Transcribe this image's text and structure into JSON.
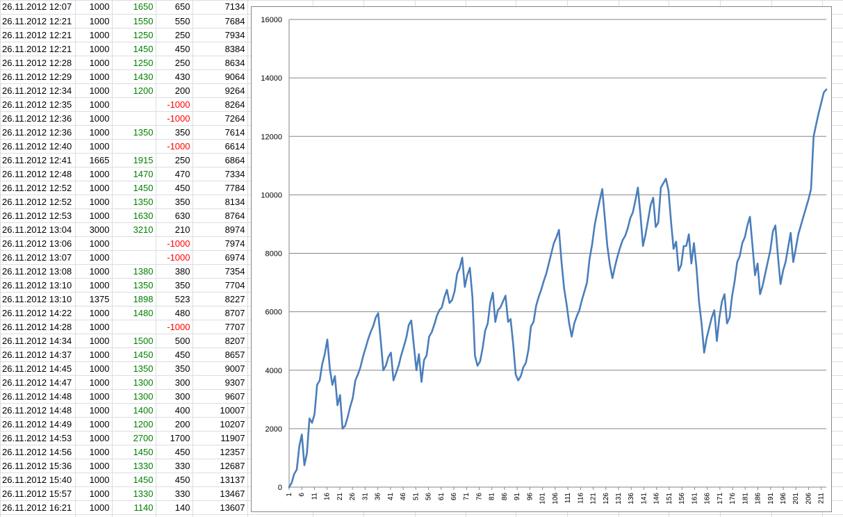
{
  "table": {
    "rows": [
      {
        "date": "26.11.2012 12:07",
        "stake": "1000",
        "payout": "1650",
        "profit": "650",
        "balance": "7134"
      },
      {
        "date": "26.11.2012 12:21",
        "stake": "1000",
        "payout": "1550",
        "profit": "550",
        "balance": "7684"
      },
      {
        "date": "26.11.2012 12:21",
        "stake": "1000",
        "payout": "1250",
        "profit": "250",
        "balance": "7934"
      },
      {
        "date": "26.11.2012 12:21",
        "stake": "1000",
        "payout": "1450",
        "profit": "450",
        "balance": "8384"
      },
      {
        "date": "26.11.2012 12:28",
        "stake": "1000",
        "payout": "1250",
        "profit": "250",
        "balance": "8634"
      },
      {
        "date": "26.11.2012 12:29",
        "stake": "1000",
        "payout": "1430",
        "profit": "430",
        "balance": "9064"
      },
      {
        "date": "26.11.2012 12:34",
        "stake": "1000",
        "payout": "1200",
        "profit": "200",
        "balance": "9264"
      },
      {
        "date": "26.11.2012 12:35",
        "stake": "1000",
        "payout": "",
        "profit": "-1000",
        "balance": "8264"
      },
      {
        "date": "26.11.2012 12:36",
        "stake": "1000",
        "payout": "",
        "profit": "-1000",
        "balance": "7264"
      },
      {
        "date": "26.11.2012 12:36",
        "stake": "1000",
        "payout": "1350",
        "profit": "350",
        "balance": "7614"
      },
      {
        "date": "26.11.2012 12:40",
        "stake": "1000",
        "payout": "",
        "profit": "-1000",
        "balance": "6614"
      },
      {
        "date": "26.11.2012 12:41",
        "stake": "1665",
        "payout": "1915",
        "profit": "250",
        "balance": "6864"
      },
      {
        "date": "26.11.2012 12:48",
        "stake": "1000",
        "payout": "1470",
        "profit": "470",
        "balance": "7334"
      },
      {
        "date": "26.11.2012 12:52",
        "stake": "1000",
        "payout": "1450",
        "profit": "450",
        "balance": "7784"
      },
      {
        "date": "26.11.2012 12:52",
        "stake": "1000",
        "payout": "1350",
        "profit": "350",
        "balance": "8134"
      },
      {
        "date": "26.11.2012 12:53",
        "stake": "1000",
        "payout": "1630",
        "profit": "630",
        "balance": "8764"
      },
      {
        "date": "26.11.2012 13:04",
        "stake": "3000",
        "payout": "3210",
        "profit": "210",
        "balance": "8974"
      },
      {
        "date": "26.11.2012 13:06",
        "stake": "1000",
        "payout": "",
        "profit": "-1000",
        "balance": "7974"
      },
      {
        "date": "26.11.2012 13:07",
        "stake": "1000",
        "payout": "",
        "profit": "-1000",
        "balance": "6974"
      },
      {
        "date": "26.11.2012 13:08",
        "stake": "1000",
        "payout": "1380",
        "profit": "380",
        "balance": "7354"
      },
      {
        "date": "26.11.2012 13:10",
        "stake": "1000",
        "payout": "1350",
        "profit": "350",
        "balance": "7704"
      },
      {
        "date": "26.11.2012 13:10",
        "stake": "1375",
        "payout": "1898",
        "profit": "523",
        "balance": "8227"
      },
      {
        "date": "26.11.2012 14:22",
        "stake": "1000",
        "payout": "1480",
        "profit": "480",
        "balance": "8707"
      },
      {
        "date": "26.11.2012 14:28",
        "stake": "1000",
        "payout": "",
        "profit": "-1000",
        "balance": "7707"
      },
      {
        "date": "26.11.2012 14:34",
        "stake": "1000",
        "payout": "1500",
        "profit": "500",
        "balance": "8207"
      },
      {
        "date": "26.11.2012 14:37",
        "stake": "1000",
        "payout": "1450",
        "profit": "450",
        "balance": "8657"
      },
      {
        "date": "26.11.2012 14:45",
        "stake": "1000",
        "payout": "1350",
        "profit": "350",
        "balance": "9007"
      },
      {
        "date": "26.11.2012 14:47",
        "stake": "1000",
        "payout": "1300",
        "profit": "300",
        "balance": "9307"
      },
      {
        "date": "26.11.2012 14:48",
        "stake": "1000",
        "payout": "1300",
        "profit": "300",
        "balance": "9607"
      },
      {
        "date": "26.11.2012 14:48",
        "stake": "1000",
        "payout": "1400",
        "profit": "400",
        "balance": "10007"
      },
      {
        "date": "26.11.2012 14:49",
        "stake": "1000",
        "payout": "1200",
        "profit": "200",
        "balance": "10207"
      },
      {
        "date": "26.11.2012 14:53",
        "stake": "1000",
        "payout": "2700",
        "profit": "1700",
        "balance": "11907"
      },
      {
        "date": "26.11.2012 14:56",
        "stake": "1000",
        "payout": "1450",
        "profit": "450",
        "balance": "12357"
      },
      {
        "date": "26.11.2012 15:36",
        "stake": "1000",
        "payout": "1330",
        "profit": "330",
        "balance": "12687"
      },
      {
        "date": "26.11.2012 15:40",
        "stake": "1000",
        "payout": "1450",
        "profit": "450",
        "balance": "13137"
      },
      {
        "date": "26.11.2012 15:57",
        "stake": "1000",
        "payout": "1330",
        "profit": "330",
        "balance": "13467"
      },
      {
        "date": "26.11.2012 16:21",
        "stake": "1000",
        "payout": "1140",
        "profit": "140",
        "balance": "13607"
      }
    ]
  },
  "chart_data": {
    "type": "line",
    "ylim": [
      0,
      16000
    ],
    "y_ticks": [
      0,
      2000,
      4000,
      6000,
      8000,
      10000,
      12000,
      14000,
      16000
    ],
    "x_ticks": [
      1,
      6,
      11,
      16,
      21,
      26,
      31,
      36,
      41,
      46,
      51,
      56,
      61,
      66,
      71,
      76,
      81,
      86,
      91,
      96,
      101,
      106,
      111,
      116,
      121,
      126,
      131,
      136,
      141,
      146,
      151,
      156,
      161,
      166,
      171,
      176,
      181,
      186,
      191,
      196,
      201,
      206,
      211
    ],
    "x_count": 213,
    "grid": true,
    "legend": "none",
    "line_color": "#4a7ebb",
    "series": [
      {
        "values": [
          0,
          150,
          450,
          600,
          1400,
          1800,
          750,
          1150,
          2350,
          2200,
          2500,
          3500,
          3650,
          4200,
          4550,
          5050,
          4050,
          3500,
          3800,
          2800,
          3150,
          2000,
          2100,
          2400,
          2750,
          3050,
          3650,
          3850,
          4100,
          4450,
          4750,
          5050,
          5300,
          5500,
          5800,
          5950,
          5000,
          4000,
          4150,
          4450,
          4600,
          3650,
          3900,
          4150,
          4500,
          4800,
          5100,
          5550,
          5700,
          4850,
          4000,
          4550,
          3600,
          4350,
          4500,
          5150,
          5300,
          5550,
          5850,
          6050,
          6150,
          6500,
          6750,
          6300,
          6400,
          6700,
          7300,
          7500,
          7850,
          6850,
          7250,
          7500,
          6500,
          4500,
          4150,
          4300,
          4750,
          5350,
          5600,
          6300,
          6650,
          5650,
          6050,
          6150,
          6350,
          6550,
          5650,
          5750,
          4900,
          3850,
          3650,
          3800,
          4100,
          4250,
          4700,
          5500,
          5650,
          6200,
          6500,
          6750,
          7050,
          7300,
          7650,
          8000,
          8350,
          8550,
          8800,
          7700,
          6800,
          6250,
          5600,
          5150,
          5600,
          5850,
          6050,
          6400,
          6700,
          7000,
          7800,
          8300,
          8950,
          9400,
          9800,
          10200,
          9200,
          8250,
          7600,
          7150,
          7550,
          7900,
          8200,
          8450,
          8600,
          8850,
          9200,
          9400,
          9800,
          10250,
          9300,
          8250,
          8650,
          9150,
          9650,
          9900,
          8900,
          9050,
          10250,
          10400,
          10550,
          10150,
          9100,
          8150,
          8400,
          7400,
          7600,
          8250,
          8250,
          8650,
          7650,
          8350,
          7500,
          6350,
          5600,
          4600,
          5100,
          5450,
          5800,
          6050,
          5000,
          5800,
          6350,
          6600,
          5600,
          5800,
          6550,
          7050,
          7700,
          7900,
          8350,
          8550,
          8950,
          9250,
          8250,
          7250,
          7650,
          6600,
          6900,
          7300,
          7700,
          8100,
          8750,
          8950,
          7900,
          6950,
          7400,
          7700,
          8200,
          8700,
          7700,
          8150,
          8650,
          8950,
          9250,
          9550,
          9850,
          10200,
          12000,
          12400,
          12800,
          13150,
          13500,
          13607
        ]
      }
    ]
  }
}
